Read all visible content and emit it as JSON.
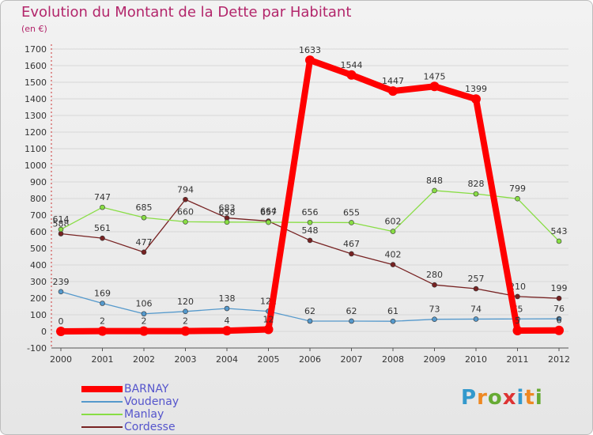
{
  "chart_data": {
    "type": "line",
    "title": "Evolution du Montant de la Dette par Habitant",
    "subtitle": "(en €)",
    "xlabel": "",
    "ylabel": "",
    "x": [
      "2000",
      "2001",
      "2002",
      "2003",
      "2004",
      "2005",
      "2006",
      "2007",
      "2008",
      "2009",
      "2010",
      "2011",
      "2012"
    ],
    "y_ticks": [
      -100,
      0,
      100,
      200,
      300,
      400,
      500,
      600,
      700,
      800,
      900,
      1000,
      1100,
      1200,
      1300,
      1400,
      1500,
      1600,
      1700
    ],
    "ylim": [
      -100,
      1700
    ],
    "grid": "horizontal",
    "legend_position": "bottom-left",
    "series": [
      {
        "name": "BARNAY",
        "color": "#ff0000",
        "values": [
          0,
          2,
          2,
          2,
          4,
          12,
          1633,
          1544,
          1447,
          1475,
          1399,
          5,
          6
        ],
        "labels": [
          "0",
          "2",
          "2",
          "2",
          "4",
          "12",
          "1633",
          "1544",
          "1447",
          "1475",
          "1399",
          "5",
          "6"
        ]
      },
      {
        "name": "Voudenay",
        "color": "#5599cc",
        "values": [
          239,
          169,
          106,
          120,
          138,
          121,
          62,
          62,
          61,
          73,
          74,
          75,
          76
        ],
        "labels": [
          "239",
          "169",
          "106",
          "120",
          "138",
          "121",
          "62",
          "62",
          "61",
          "73",
          "74",
          "75",
          "76"
        ]
      },
      {
        "name": "Manlay",
        "color": "#88dd44",
        "values": [
          614,
          747,
          685,
          660,
          658,
          657,
          656,
          655,
          602,
          848,
          828,
          799,
          543
        ],
        "labels": [
          "614",
          "747",
          "685",
          "660",
          "658",
          "657",
          "656",
          "655",
          "602",
          "848",
          "828",
          "799",
          "543"
        ]
      },
      {
        "name": "Cordesse",
        "color": "#772222",
        "values": [
          588,
          561,
          477,
          794,
          683,
          664,
          548,
          467,
          402,
          280,
          257,
          210,
          199
        ],
        "labels": [
          "588",
          "561",
          "477",
          "794",
          "683",
          "664",
          "548",
          "467",
          "402",
          "280",
          "257",
          "210",
          "199"
        ]
      }
    ]
  },
  "brand": {
    "letters": [
      "P",
      "r",
      "o",
      "x",
      "i",
      "t",
      "i"
    ],
    "colors": [
      "#3399cc",
      "#ee8822",
      "#66aa33",
      "#dd3333",
      "#3399cc",
      "#ee8822",
      "#66aa33"
    ]
  }
}
